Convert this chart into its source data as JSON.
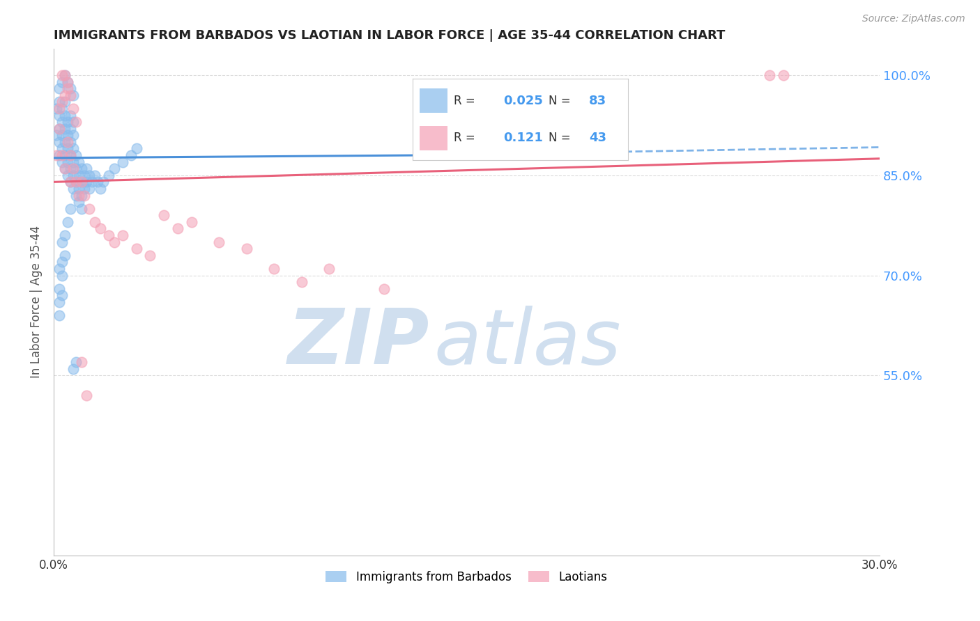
{
  "title": "IMMIGRANTS FROM BARBADOS VS LAOTIAN IN LABOR FORCE | AGE 35-44 CORRELATION CHART",
  "source": "Source: ZipAtlas.com",
  "ylabel": "In Labor Force | Age 35-44",
  "xlim": [
    0.0,
    0.3
  ],
  "ylim": [
    0.28,
    1.04
  ],
  "ytick_positions": [
    0.55,
    0.7,
    0.85,
    1.0
  ],
  "ytick_labels": [
    "55.0%",
    "70.0%",
    "85.0%",
    "100.0%"
  ],
  "barbados_color": "#87BBEC",
  "laotian_color": "#F4A0B5",
  "barbados_line_color": "#4A90D9",
  "laotian_line_color": "#E8607A",
  "barbados_dash_color": "#7EB3E8",
  "legend_R_color": "#4499EE",
  "legend_N_color": "#4499EE",
  "watermark_zip": "ZIP",
  "watermark_atlas": "atlas",
  "watermark_color": "#D0DFEF",
  "background_color": "#FFFFFF",
  "grid_color": "#CCCCCC",
  "right_tick_color": "#4499FF",
  "barbados_R": 0.025,
  "barbados_N": 83,
  "laotian_R": 0.121,
  "laotian_N": 43,
  "barbados_x": [
    0.001,
    0.001,
    0.002,
    0.002,
    0.002,
    0.002,
    0.002,
    0.003,
    0.003,
    0.003,
    0.003,
    0.003,
    0.004,
    0.004,
    0.004,
    0.004,
    0.004,
    0.004,
    0.005,
    0.005,
    0.005,
    0.005,
    0.005,
    0.006,
    0.006,
    0.006,
    0.006,
    0.006,
    0.006,
    0.007,
    0.007,
    0.007,
    0.007,
    0.007,
    0.007,
    0.008,
    0.008,
    0.008,
    0.008,
    0.009,
    0.009,
    0.009,
    0.009,
    0.01,
    0.01,
    0.01,
    0.01,
    0.011,
    0.011,
    0.012,
    0.012,
    0.013,
    0.013,
    0.014,
    0.015,
    0.016,
    0.017,
    0.018,
    0.02,
    0.022,
    0.025,
    0.028,
    0.03,
    0.002,
    0.003,
    0.004,
    0.005,
    0.006,
    0.007,
    0.003,
    0.004,
    0.002,
    0.002,
    0.002,
    0.002,
    0.003,
    0.003,
    0.003,
    0.004,
    0.005,
    0.006,
    0.007,
    0.008
  ],
  "barbados_y": [
    0.91,
    0.95,
    0.88,
    0.9,
    0.92,
    0.94,
    0.96,
    0.87,
    0.89,
    0.91,
    0.93,
    0.95,
    0.86,
    0.88,
    0.9,
    0.92,
    0.94,
    0.96,
    0.85,
    0.87,
    0.89,
    0.91,
    0.93,
    0.84,
    0.86,
    0.88,
    0.9,
    0.92,
    0.94,
    0.83,
    0.85,
    0.87,
    0.89,
    0.91,
    0.93,
    0.82,
    0.84,
    0.86,
    0.88,
    0.81,
    0.83,
    0.85,
    0.87,
    0.8,
    0.82,
    0.84,
    0.86,
    0.83,
    0.85,
    0.84,
    0.86,
    0.83,
    0.85,
    0.84,
    0.85,
    0.84,
    0.83,
    0.84,
    0.85,
    0.86,
    0.87,
    0.88,
    0.89,
    0.98,
    0.99,
    1.0,
    0.99,
    0.98,
    0.97,
    0.75,
    0.73,
    0.71,
    0.68,
    0.66,
    0.64,
    0.7,
    0.72,
    0.67,
    0.76,
    0.78,
    0.8,
    0.56,
    0.57
  ],
  "laotian_x": [
    0.001,
    0.002,
    0.003,
    0.004,
    0.005,
    0.006,
    0.006,
    0.007,
    0.008,
    0.009,
    0.01,
    0.011,
    0.013,
    0.015,
    0.017,
    0.02,
    0.022,
    0.025,
    0.03,
    0.035,
    0.04,
    0.045,
    0.05,
    0.06,
    0.07,
    0.08,
    0.09,
    0.1,
    0.12,
    0.002,
    0.003,
    0.004,
    0.005,
    0.003,
    0.004,
    0.005,
    0.006,
    0.007,
    0.008,
    0.26,
    0.265,
    0.01,
    0.012
  ],
  "laotian_y": [
    0.88,
    0.92,
    0.88,
    0.86,
    0.9,
    0.84,
    0.88,
    0.86,
    0.84,
    0.82,
    0.84,
    0.82,
    0.8,
    0.78,
    0.77,
    0.76,
    0.75,
    0.76,
    0.74,
    0.73,
    0.79,
    0.77,
    0.78,
    0.75,
    0.74,
    0.71,
    0.69,
    0.71,
    0.68,
    0.95,
    0.96,
    0.97,
    0.98,
    1.0,
    1.0,
    0.99,
    0.97,
    0.95,
    0.93,
    1.0,
    1.0,
    0.57,
    0.52
  ],
  "barb_trend_x0": 0.0,
  "barb_trend_y0": 0.876,
  "barb_trend_x1_solid": 0.133,
  "barb_trend_y1_solid": 0.88,
  "barb_trend_x1_dash": 0.3,
  "barb_trend_y1_dash": 0.892,
  "lao_trend_x0": 0.0,
  "lao_trend_y0": 0.84,
  "lao_trend_x1": 0.3,
  "lao_trend_y1": 0.875
}
